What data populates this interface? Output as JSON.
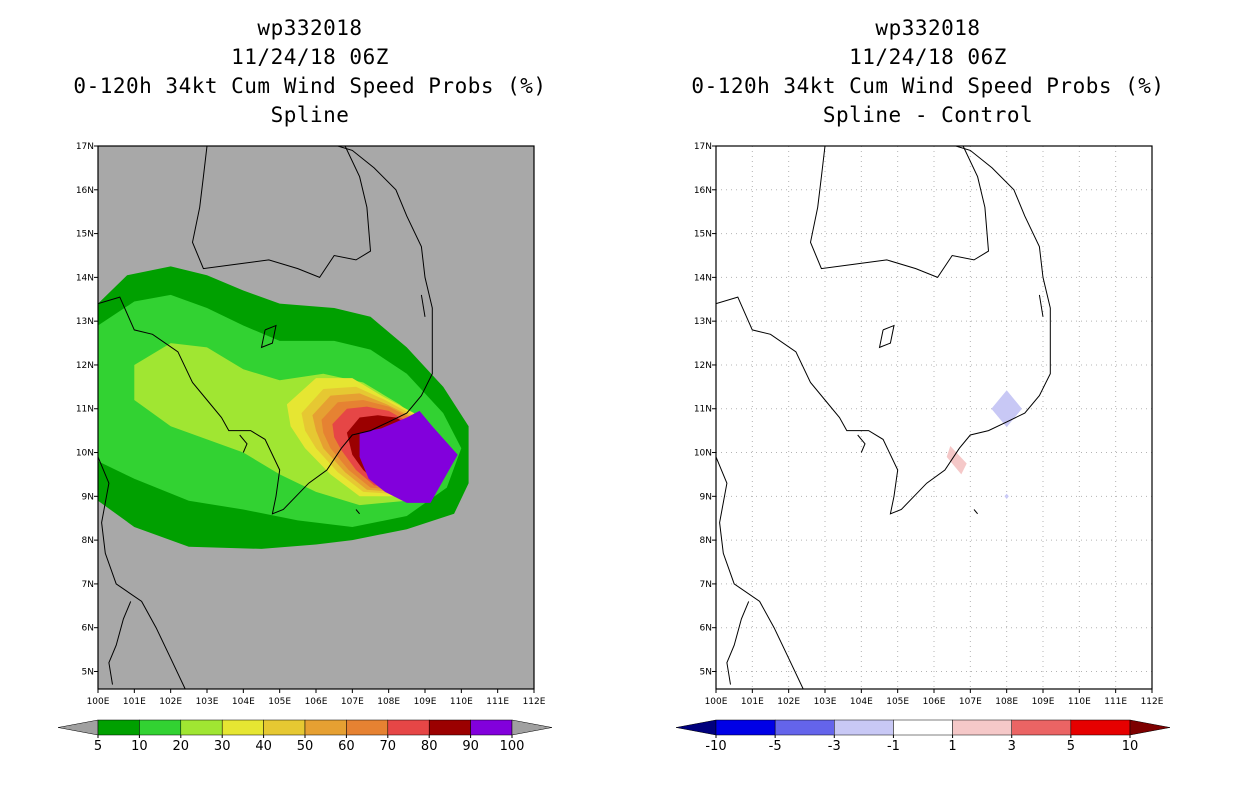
{
  "chart_data": [
    {
      "type": "heatmap",
      "storm_id": "wp332018",
      "datetime": "11/24/18 06Z",
      "title": "0-120h 34kt Cum Wind Speed Probs (%)",
      "subtitle": "Spline",
      "x_ticks": [
        "100E",
        "101E",
        "102E",
        "103E",
        "104E",
        "105E",
        "106E",
        "107E",
        "108E",
        "109E",
        "110E",
        "111E",
        "112E"
      ],
      "y_ticks": [
        "5N",
        "6N",
        "7N",
        "8N",
        "9N",
        "10N",
        "11N",
        "12N",
        "13N",
        "14N",
        "15N",
        "16N",
        "17N"
      ],
      "xlim": [
        100,
        112
      ],
      "ylim": [
        4.6,
        17
      ],
      "grid": false,
      "background_color": "#a8a8a8",
      "colorbar": {
        "labels": [
          "5",
          "10",
          "20",
          "30",
          "40",
          "50",
          "60",
          "70",
          "80",
          "90",
          "100"
        ],
        "colors": [
          "#a0a0a0",
          "#00a000",
          "#32d232",
          "#a0e632",
          "#e6e632",
          "#e6c832",
          "#e6a032",
          "#e68232",
          "#e64646",
          "#9b0000",
          "#8200dc",
          "#a0a0a0"
        ]
      },
      "contour_levels": [
        {
          "level": 5,
          "color": "#00a000",
          "region": [
            [
              100,
              13.4
            ],
            [
              100.8,
              14.05
            ],
            [
              102,
              14.25
            ],
            [
              103,
              14.05
            ],
            [
              104,
              13.7
            ],
            [
              105,
              13.4
            ],
            [
              106.5,
              13.3
            ],
            [
              107.5,
              13.1
            ],
            [
              108.5,
              12.4
            ],
            [
              109.5,
              11.5
            ],
            [
              110.2,
              10.6
            ],
            [
              110.2,
              9.3
            ],
            [
              109.8,
              8.6
            ],
            [
              108.5,
              8.25
            ],
            [
              107,
              8.0
            ],
            [
              106,
              7.9
            ],
            [
              104.5,
              7.8
            ],
            [
              102.5,
              7.85
            ],
            [
              101,
              8.3
            ],
            [
              100,
              8.9
            ]
          ]
        },
        {
          "level": 10,
          "color": "#32d232",
          "region": [
            [
              100,
              12.9
            ],
            [
              101,
              13.45
            ],
            [
              102,
              13.6
            ],
            [
              103,
              13.3
            ],
            [
              104,
              12.9
            ],
            [
              105,
              12.55
            ],
            [
              106.5,
              12.55
            ],
            [
              107.5,
              12.35
            ],
            [
              108.5,
              11.8
            ],
            [
              109.5,
              10.9
            ],
            [
              110,
              10.1
            ],
            [
              109.6,
              9.2
            ],
            [
              108.5,
              8.55
            ],
            [
              107,
              8.3
            ],
            [
              105.5,
              8.45
            ],
            [
              104,
              8.7
            ],
            [
              102.5,
              8.9
            ],
            [
              101,
              9.4
            ],
            [
              100,
              9.8
            ]
          ]
        },
        {
          "level": 20,
          "color": "#a0e632",
          "region": [
            [
              101,
              12.0
            ],
            [
              102,
              12.5
            ],
            [
              103,
              12.4
            ],
            [
              104,
              11.9
            ],
            [
              105,
              11.65
            ],
            [
              106.2,
              11.8
            ],
            [
              107.3,
              11.6
            ],
            [
              108.3,
              11.1
            ],
            [
              109.2,
              10.5
            ],
            [
              109.6,
              10.0
            ],
            [
              109.3,
              9.3
            ],
            [
              108.5,
              8.9
            ],
            [
              107.2,
              8.8
            ],
            [
              106,
              9.1
            ],
            [
              105,
              9.5
            ],
            [
              104,
              10.0
            ],
            [
              103,
              10.3
            ],
            [
              102,
              10.6
            ],
            [
              101,
              11.2
            ]
          ]
        },
        {
          "level": 30,
          "color": "#e6e632",
          "region": [
            [
              105.2,
              11.1
            ],
            [
              106,
              11.7
            ],
            [
              107,
              11.7
            ],
            [
              107.8,
              11.3
            ],
            [
              108.7,
              10.9
            ],
            [
              109.3,
              10.3
            ],
            [
              109.1,
              9.35
            ],
            [
              108.2,
              9.0
            ],
            [
              107.2,
              9.0
            ],
            [
              106.4,
              9.5
            ],
            [
              105.7,
              10.1
            ],
            [
              105.3,
              10.6
            ]
          ]
        },
        {
          "level": 40,
          "color": "#e6c832",
          "region": [
            [
              105.6,
              10.9
            ],
            [
              106.2,
              11.45
            ],
            [
              107.1,
              11.5
            ],
            [
              107.9,
              11.2
            ],
            [
              108.8,
              10.8
            ],
            [
              109.3,
              10.2
            ],
            [
              109.1,
              9.35
            ],
            [
              108.2,
              9.05
            ],
            [
              107.3,
              9.1
            ],
            [
              106.6,
              9.55
            ],
            [
              106.0,
              10.1
            ],
            [
              105.7,
              10.5
            ]
          ]
        },
        {
          "level": 50,
          "color": "#e6a032",
          "region": [
            [
              105.9,
              10.85
            ],
            [
              106.4,
              11.3
            ],
            [
              107.2,
              11.35
            ],
            [
              107.95,
              11.1
            ],
            [
              108.8,
              10.75
            ],
            [
              109.25,
              10.2
            ],
            [
              109.05,
              9.35
            ],
            [
              108.2,
              9.1
            ],
            [
              107.4,
              9.15
            ],
            [
              106.8,
              9.55
            ],
            [
              106.2,
              10.1
            ],
            [
              106.0,
              10.5
            ]
          ]
        },
        {
          "level": 60,
          "color": "#e68232",
          "region": [
            [
              106.15,
              10.75
            ],
            [
              106.6,
              11.15
            ],
            [
              107.3,
              11.2
            ],
            [
              108.0,
              11.05
            ],
            [
              108.8,
              10.7
            ],
            [
              109.2,
              10.2
            ],
            [
              109.0,
              9.35
            ],
            [
              108.2,
              9.15
            ],
            [
              107.5,
              9.2
            ],
            [
              106.9,
              9.6
            ],
            [
              106.4,
              10.1
            ],
            [
              106.2,
              10.45
            ]
          ]
        },
        {
          "level": 70,
          "color": "#e64646",
          "region": [
            [
              106.45,
              10.65
            ],
            [
              106.85,
              11.0
            ],
            [
              107.4,
              11.05
            ],
            [
              108.0,
              10.95
            ],
            [
              108.75,
              10.6
            ],
            [
              109.15,
              10.15
            ],
            [
              109.0,
              9.4
            ],
            [
              108.2,
              9.2
            ],
            [
              107.6,
              9.25
            ],
            [
              107.1,
              9.6
            ],
            [
              106.7,
              10.05
            ],
            [
              106.5,
              10.35
            ]
          ]
        },
        {
          "level": 80,
          "color": "#9b0000",
          "region": [
            [
              106.85,
              10.45
            ],
            [
              107.2,
              10.8
            ],
            [
              107.7,
              10.85
            ],
            [
              108.2,
              10.8
            ],
            [
              108.85,
              10.5
            ],
            [
              109.15,
              10.1
            ],
            [
              109.0,
              9.45
            ],
            [
              108.25,
              9.25
            ],
            [
              107.7,
              9.3
            ],
            [
              107.3,
              9.6
            ],
            [
              107.0,
              9.95
            ]
          ]
        },
        {
          "level": 90,
          "color": "#8200dc",
          "region": [
            [
              107.2,
              10.45
            ],
            [
              107.8,
              10.55
            ],
            [
              108.5,
              10.8
            ],
            [
              108.85,
              10.95
            ],
            [
              109.2,
              10.6
            ],
            [
              109.9,
              9.95
            ],
            [
              109.15,
              8.85
            ],
            [
              108.5,
              8.85
            ],
            [
              107.9,
              9.1
            ],
            [
              107.45,
              9.4
            ],
            [
              107.2,
              9.9
            ]
          ]
        }
      ]
    },
    {
      "type": "heatmap",
      "storm_id": "wp332018",
      "datetime": "11/24/18 06Z",
      "title": "0-120h 34kt Cum Wind Speed Probs (%)",
      "subtitle": "Spline - Control",
      "x_ticks": [
        "100E",
        "101E",
        "102E",
        "103E",
        "104E",
        "105E",
        "106E",
        "107E",
        "108E",
        "109E",
        "110E",
        "111E",
        "112E"
      ],
      "y_ticks": [
        "5N",
        "6N",
        "7N",
        "8N",
        "9N",
        "10N",
        "11N",
        "12N",
        "13N",
        "14N",
        "15N",
        "16N",
        "17N"
      ],
      "xlim": [
        100,
        112
      ],
      "ylim": [
        4.6,
        17
      ],
      "grid": true,
      "background_color": "#ffffff",
      "colorbar": {
        "labels": [
          "-10",
          "-5",
          "-3",
          "-1",
          "1",
          "3",
          "5",
          "10"
        ],
        "colors": [
          "#00007d",
          "#0000e6",
          "#6464eb",
          "#c8c8f5",
          "#ffffff",
          "#f5c8c8",
          "#eb6464",
          "#e60000",
          "#7d0000"
        ]
      },
      "difference_features": [
        {
          "sign": "negative",
          "color": "#c8c8f5",
          "center_lon": 108.0,
          "center_lat": 11.0,
          "half_size_deg": 0.42
        },
        {
          "sign": "negative",
          "color": "#c8c8f5",
          "center_lon": 108.0,
          "center_lat": 9.0,
          "half_size_deg": 0.06
        },
        {
          "sign": "positive",
          "color": "#f5c8c8",
          "center_lon": 106.6,
          "center_lat": 9.85,
          "half_size_deg": 0.25
        }
      ]
    }
  ]
}
